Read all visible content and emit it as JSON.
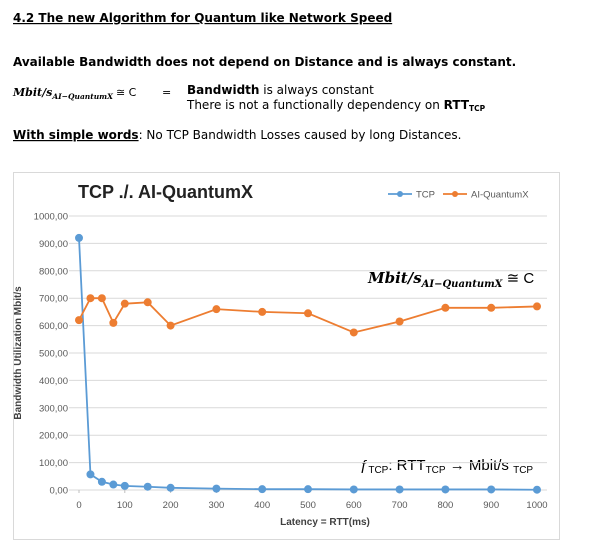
{
  "header": {
    "title": "4.2 The new Algorithm for Quantum like Network Speed"
  },
  "statement": "Available Bandwidth does not depend on Distance and is always constant.",
  "formula": {
    "lhs": "Mbit/s",
    "subscript": "AI−QuantumX",
    "relation": "≅ C",
    "equals": "="
  },
  "explanation": {
    "term": "Bandwidth",
    "rest": " is always constant",
    "line2": "There is not a functionally dependency on ",
    "rtt": "RTT",
    "rtt_sub": "TCP"
  },
  "summary": {
    "label": "With simple words",
    "text": ": No TCP Bandwidth Losses caused by long Distances."
  },
  "chart_data": {
    "type": "line",
    "title": "TCP ./. AI-QuantumX",
    "x_label": "Latency = RTT(ms)",
    "y_label": "Bandwidth Utilization Mbit/s",
    "x": [
      0,
      25,
      50,
      75,
      100,
      150,
      200,
      300,
      400,
      500,
      600,
      700,
      800,
      900,
      1000
    ],
    "series": [
      {
        "name": "TCP",
        "color": "#5b9bd5",
        "values": [
          920,
          57,
          30,
          20,
          15,
          12,
          8,
          5,
          3,
          3,
          2,
          2,
          2,
          2,
          1
        ]
      },
      {
        "name": "AI-QuantumX",
        "color": "#ed7d31",
        "values": [
          620,
          700,
          700,
          610,
          680,
          685,
          600,
          660,
          650,
          645,
          575,
          615,
          665,
          665,
          670
        ]
      }
    ],
    "xlim": [
      0,
      1000
    ],
    "xticks": [
      0,
      100,
      200,
      300,
      400,
      500,
      600,
      700,
      800,
      900,
      1000
    ],
    "ylim": [
      0,
      1000
    ],
    "yticks": [
      {
        "value": 0,
        "label": "0,00"
      },
      {
        "value": 100,
        "label": "100,00"
      },
      {
        "value": 200,
        "label": "200,00"
      },
      {
        "value": 300,
        "label": "300,00"
      },
      {
        "value": 400,
        "label": "400,00"
      },
      {
        "value": 500,
        "label": "500,00"
      },
      {
        "value": 600,
        "label": "600,00"
      },
      {
        "value": 700,
        "label": "700,00"
      },
      {
        "value": 800,
        "label": "800,00"
      },
      {
        "value": 900,
        "label": "900,00"
      },
      {
        "value": 1000,
        "label": "1000,00"
      }
    ],
    "grid": true,
    "legend": "top-right",
    "annotations": [
      {
        "main": "Mbit/s",
        "sub": "AI−QuantumX",
        "tail": " ≅ C"
      },
      {
        "f": "ƒ",
        "f_sub": "TCP",
        "mid": ": RTT",
        "mid_sub": "TCP",
        "tail": " → Mbit/s ",
        "tail_sub": "TCP"
      }
    ]
  }
}
